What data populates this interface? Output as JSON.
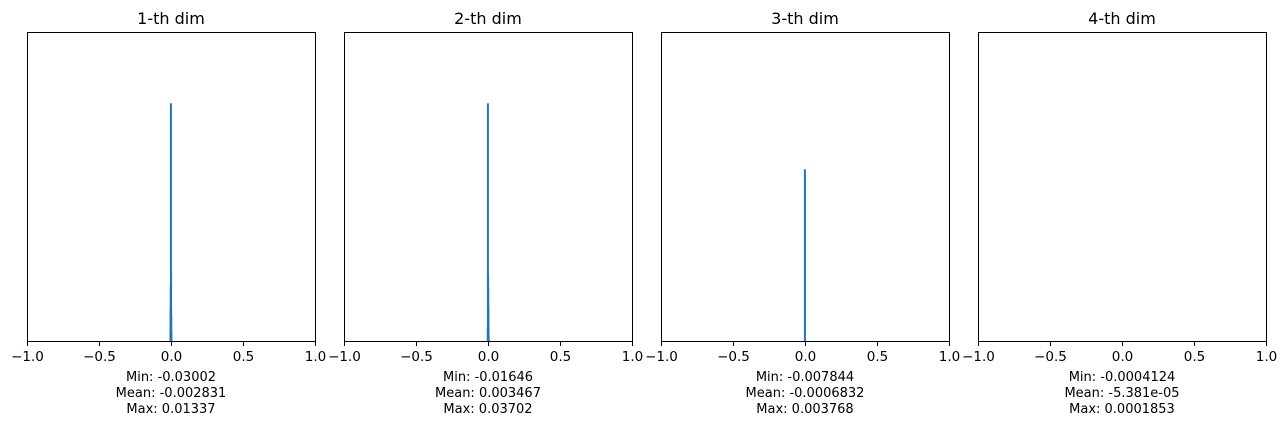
{
  "colors": {
    "bar": "#1f77b4",
    "axes": "#000000",
    "background": "#ffffff"
  },
  "chart_data": [
    {
      "type": "bar",
      "title": "1-th dim",
      "xlim": [
        -1.0,
        1.0
      ],
      "xticks": [
        -1.0,
        -0.5,
        0.0,
        0.5,
        1.0
      ],
      "xtick_labels": [
        "−1.0",
        "−0.5",
        "0.0",
        "0.5",
        "1.0"
      ],
      "y_axis_shown": false,
      "ylim_fraction_of_max": [
        0,
        1.3
      ],
      "bins": [
        {
          "x": -0.0035,
          "height": 0.05
        },
        {
          "x": -0.0025,
          "height": 0.13
        },
        {
          "x": -0.0015,
          "height": 0.23
        },
        {
          "x": -0.0005,
          "height": 1.0
        },
        {
          "x": 0.0005,
          "height": 0.3
        },
        {
          "x": 0.0015,
          "height": 0.11
        },
        {
          "x": 0.0025,
          "height": 0.04
        }
      ],
      "stats": {
        "min": "Min: -0.03002",
        "mean": "Mean: -0.002831",
        "max": "Max: 0.01337"
      }
    },
    {
      "type": "bar",
      "title": "2-th dim",
      "xlim": [
        -1.0,
        1.0
      ],
      "xticks": [
        -1.0,
        -0.5,
        0.0,
        0.5,
        1.0
      ],
      "xtick_labels": [
        "−1.0",
        "−0.5",
        "0.0",
        "0.5",
        "1.0"
      ],
      "y_axis_shown": false,
      "ylim_fraction_of_max": [
        0,
        1.3
      ],
      "bins": [
        {
          "x": -0.0015,
          "height": 0.05
        },
        {
          "x": -0.0005,
          "height": 1.0
        },
        {
          "x": 0.0005,
          "height": 0.28
        },
        {
          "x": 0.0015,
          "height": 0.22
        },
        {
          "x": 0.0025,
          "height": 0.14
        },
        {
          "x": 0.0035,
          "height": 0.06
        },
        {
          "x": 0.0045,
          "height": 0.02
        }
      ],
      "stats": {
        "min": "Min: -0.01646",
        "mean": "Mean: 0.003467",
        "max": "Max: 0.03702"
      }
    },
    {
      "type": "bar",
      "title": "3-th dim",
      "xlim": [
        -1.0,
        1.0
      ],
      "xticks": [
        -1.0,
        -0.5,
        0.0,
        0.5,
        1.0
      ],
      "xtick_labels": [
        "−1.0",
        "−0.5",
        "0.0",
        "0.5",
        "1.0"
      ],
      "y_axis_shown": false,
      "ylim_fraction_of_max": [
        0,
        1.8
      ],
      "bins": [
        {
          "x": -0.0005,
          "height": 1.0
        }
      ],
      "stats": {
        "min": "Min: -0.007844",
        "mean": "Mean: -0.0006832",
        "max": "Max: 0.003768"
      }
    },
    {
      "type": "bar",
      "title": "4-th dim",
      "xlim": [
        -1.0,
        1.0
      ],
      "xticks": [
        -1.0,
        -0.5,
        0.0,
        0.5,
        1.0
      ],
      "xtick_labels": [
        "−1.0",
        "−0.5",
        "0.0",
        "0.5",
        "1.0"
      ],
      "y_axis_shown": false,
      "ylim_fraction_of_max": [
        0,
        1.3
      ],
      "bins": [],
      "stats": {
        "min": "Min: -0.0004124",
        "mean": "Mean: -5.381e-05",
        "max": "Max: 0.0001853"
      }
    }
  ]
}
